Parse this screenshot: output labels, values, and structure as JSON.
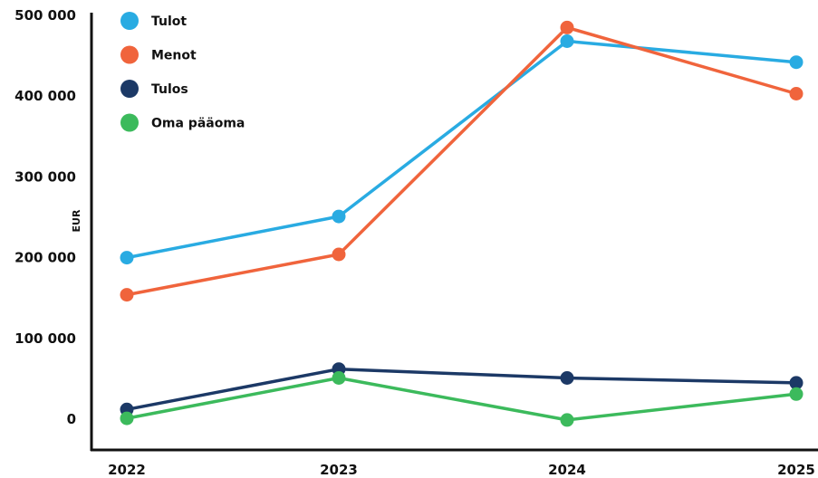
{
  "chart_data": {
    "type": "line",
    "ylabel": "EUR",
    "xlabel": "",
    "ylim": [
      0,
      500000
    ],
    "y_ticks": [
      {
        "value": 0,
        "label": "0"
      },
      {
        "value": 100000,
        "label": "100 000"
      },
      {
        "value": 200000,
        "label": "200 000"
      },
      {
        "value": 300000,
        "label": "300 000"
      },
      {
        "value": 400000,
        "label": "400 000"
      },
      {
        "value": 500000,
        "label": "500 000"
      }
    ],
    "categories": [
      "2022",
      "2023",
      "2024",
      "2025"
    ],
    "legend_position": "top-left",
    "grid": false,
    "series": [
      {
        "name": "Tulot",
        "color": "#29abe2",
        "values": [
          200000,
          251000,
          468000,
          442000
        ]
      },
      {
        "name": "Menot",
        "color": "#f0643c",
        "values": [
          154000,
          204000,
          485000,
          403000
        ]
      },
      {
        "name": "Tulos",
        "color": "#1c3966",
        "values": [
          12000,
          62000,
          51000,
          45000
        ]
      },
      {
        "name": "Oma pääoma",
        "color": "#3cba5c",
        "values": [
          1000,
          51000,
          -1000,
          31000
        ]
      }
    ]
  }
}
